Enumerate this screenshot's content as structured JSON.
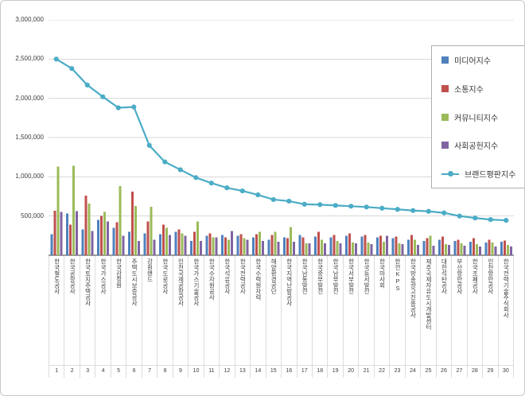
{
  "chart_data": {
    "type": "bar+line",
    "title": "",
    "xlabel": "",
    "ylabel": "",
    "ylim": [
      0,
      3000000
    ],
    "grid": true,
    "legend_position": "top-right",
    "yticks": [
      {
        "value": 3000000,
        "label": "3,000,000"
      },
      {
        "value": 2500000,
        "label": "2,500,000"
      },
      {
        "value": 2000000,
        "label": "2,000,000"
      },
      {
        "value": 1500000,
        "label": "1,500,000"
      },
      {
        "value": 1000000,
        "label": "1,000,000"
      },
      {
        "value": 500000,
        "label": "500,000"
      }
    ],
    "categories": [
      {
        "rank": "1",
        "name": "한국철도공사"
      },
      {
        "rank": "2",
        "name": "한국공항공사"
      },
      {
        "rank": "3",
        "name": "한국토지주택공사"
      },
      {
        "rank": "4",
        "name": "한국가스공사"
      },
      {
        "rank": "5",
        "name": "한국감정원"
      },
      {
        "rank": "6",
        "name": "주택도시보증공사"
      },
      {
        "rank": "7",
        "name": "강원랜드"
      },
      {
        "rank": "8",
        "name": "한국도로공사"
      },
      {
        "rank": "9",
        "name": "인천국제공항공사"
      },
      {
        "rank": "10",
        "name": "한국가스기술공사"
      },
      {
        "rank": "11",
        "name": "한국수자원공사"
      },
      {
        "rank": "12",
        "name": "한국석유공사"
      },
      {
        "rank": "13",
        "name": "한국전력공사"
      },
      {
        "rank": "14",
        "name": "한국수력원자력"
      },
      {
        "rank": "15",
        "name": "해양환경공단"
      },
      {
        "rank": "16",
        "name": "한국지역난방공사"
      },
      {
        "rank": "17",
        "name": "한국남동발전"
      },
      {
        "rank": "18",
        "name": "한국중부발전"
      },
      {
        "rank": "19",
        "name": "한국남부발전"
      },
      {
        "rank": "20",
        "name": "한국서부발전"
      },
      {
        "rank": "21",
        "name": "한국동서발전"
      },
      {
        "rank": "22",
        "name": "한국마사회"
      },
      {
        "rank": "23",
        "name": "한전KPS"
      },
      {
        "rank": "24",
        "name": "한국방송광고진흥공사"
      },
      {
        "rank": "25",
        "name": "제주국제자유도시개발센터"
      },
      {
        "rank": "26",
        "name": "대한석탄공사"
      },
      {
        "rank": "27",
        "name": "부산항만공사"
      },
      {
        "rank": "28",
        "name": "한국조폐공사"
      },
      {
        "rank": "29",
        "name": "인천항만공사"
      },
      {
        "rank": "30",
        "name": "한국전력기술주식회사"
      }
    ],
    "series": [
      {
        "key": "media",
        "name": "미디어지수",
        "type": "bar",
        "color": "#4F81BD",
        "values": [
          270000,
          530000,
          330000,
          450000,
          350000,
          300000,
          280000,
          270000,
          300000,
          180000,
          250000,
          260000,
          250000,
          230000,
          200000,
          230000,
          260000,
          240000,
          230000,
          250000,
          240000,
          230000,
          220000,
          200000,
          180000,
          200000,
          180000,
          170000,
          160000,
          170000
        ]
      },
      {
        "key": "communication",
        "name": "소통지수",
        "type": "bar",
        "color": "#C0504D",
        "values": [
          570000,
          390000,
          760000,
          500000,
          420000,
          810000,
          430000,
          390000,
          330000,
          300000,
          280000,
          230000,
          270000,
          270000,
          260000,
          220000,
          230000,
          300000,
          260000,
          280000,
          260000,
          250000,
          240000,
          260000,
          220000,
          240000,
          200000,
          220000,
          200000,
          190000
        ]
      },
      {
        "key": "community",
        "name": "커뮤니티지수",
        "type": "bar",
        "color": "#9BBB59",
        "values": [
          1130000,
          1140000,
          660000,
          550000,
          880000,
          630000,
          620000,
          350000,
          280000,
          430000,
          230000,
          200000,
          220000,
          300000,
          300000,
          360000,
          150000,
          200000,
          180000,
          160000,
          160000,
          170000,
          150000,
          200000,
          250000,
          140000,
          150000,
          140000,
          160000,
          130000
        ]
      },
      {
        "key": "social",
        "name": "사회공헌지수",
        "type": "bar",
        "color": "#8064A2",
        "values": [
          550000,
          560000,
          310000,
          430000,
          250000,
          180000,
          200000,
          260000,
          250000,
          180000,
          230000,
          310000,
          200000,
          180000,
          170000,
          170000,
          150000,
          150000,
          150000,
          150000,
          140000,
          250000,
          140000,
          130000,
          120000,
          130000,
          120000,
          110000,
          110000,
          110000
        ]
      },
      {
        "key": "brand",
        "name": "브랜드평판지수",
        "type": "line",
        "color": "#4BACC6",
        "values": [
          2500000,
          2380000,
          2170000,
          2020000,
          1880000,
          1890000,
          1400000,
          1190000,
          1090000,
          990000,
          920000,
          860000,
          820000,
          770000,
          710000,
          690000,
          650000,
          645000,
          635000,
          625000,
          615000,
          600000,
          585000,
          570000,
          560000,
          540000,
          500000,
          475000,
          455000,
          445000
        ]
      }
    ]
  }
}
